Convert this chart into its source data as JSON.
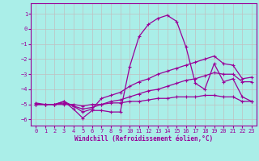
{
  "xlabel": "Windchill (Refroidissement éolien,°C)",
  "bg_color": "#aaeee8",
  "grid_color": "#c0c0c0",
  "line_color": "#990099",
  "xlim": [
    -0.5,
    23.5
  ],
  "ylim": [
    -6.4,
    1.7
  ],
  "yticks": [
    1,
    0,
    -1,
    -2,
    -3,
    -4,
    -5,
    -6
  ],
  "xticks": [
    0,
    1,
    2,
    3,
    4,
    5,
    6,
    7,
    8,
    9,
    10,
    11,
    12,
    13,
    14,
    15,
    16,
    17,
    18,
    19,
    20,
    21,
    22,
    23
  ],
  "series_x": [
    0,
    1,
    2,
    3,
    4,
    5,
    6,
    7,
    8,
    9,
    10,
    11,
    12,
    13,
    14,
    15,
    16,
    17,
    18,
    19,
    20,
    21,
    22,
    23
  ],
  "s1": [
    -4.9,
    -5.0,
    -5.0,
    -4.8,
    -5.3,
    -5.9,
    -5.4,
    -5.4,
    -5.5,
    -5.5,
    -2.5,
    -0.5,
    0.3,
    0.7,
    0.9,
    0.5,
    -1.2,
    -3.6,
    -4.0,
    -2.3,
    -3.5,
    -3.3,
    -4.5,
    -4.8
  ],
  "s2": [
    -5.0,
    -5.0,
    -5.0,
    -4.8,
    -5.1,
    -5.5,
    -5.3,
    -4.6,
    -4.4,
    -4.2,
    -3.8,
    -3.5,
    -3.3,
    -3.0,
    -2.8,
    -2.6,
    -2.4,
    -2.2,
    -2.0,
    -1.8,
    -2.3,
    -2.4,
    -3.3,
    -3.2
  ],
  "s3": [
    -5.0,
    -5.0,
    -5.0,
    -4.9,
    -5.1,
    -5.3,
    -5.2,
    -5.0,
    -4.8,
    -4.7,
    -4.5,
    -4.3,
    -4.1,
    -4.0,
    -3.8,
    -3.6,
    -3.4,
    -3.3,
    -3.1,
    -2.9,
    -3.0,
    -3.0,
    -3.5,
    -3.5
  ],
  "s4": [
    -5.0,
    -5.0,
    -5.0,
    -5.0,
    -5.0,
    -5.1,
    -5.0,
    -5.0,
    -4.9,
    -4.9,
    -4.8,
    -4.8,
    -4.7,
    -4.6,
    -4.6,
    -4.5,
    -4.5,
    -4.5,
    -4.4,
    -4.4,
    -4.5,
    -4.5,
    -4.8,
    -4.8
  ]
}
